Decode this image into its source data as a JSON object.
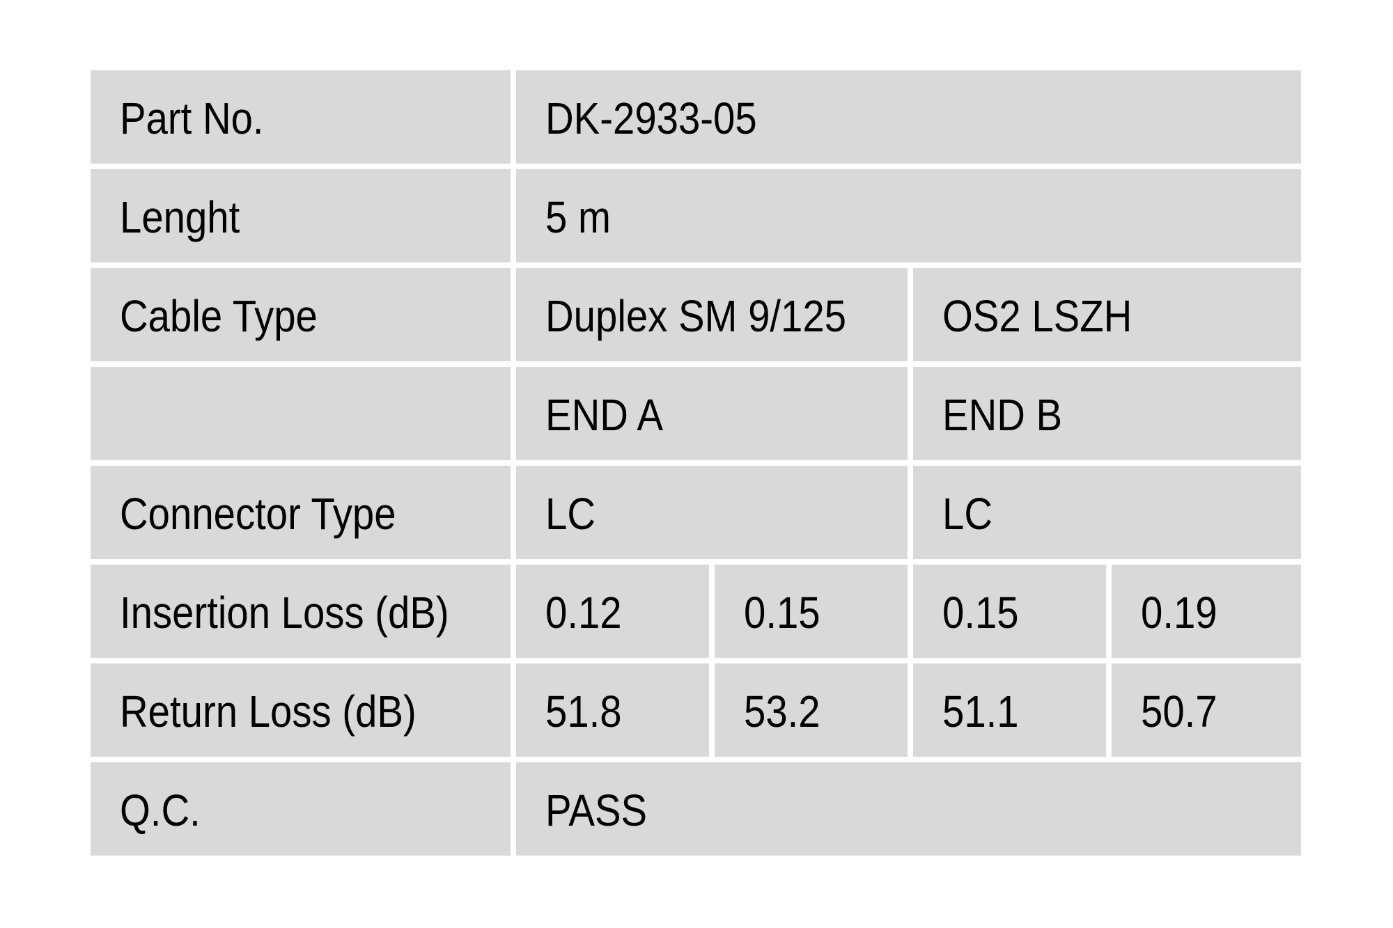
{
  "page": {
    "background": "#ffffff"
  },
  "table": {
    "cell_background": "#d9d9d9",
    "grid_line_color": "#ffffff",
    "text_color": "#000000",
    "rows": [
      {
        "label": "Part No.",
        "values": [
          "DK-2933-05"
        ]
      },
      {
        "label": "Lenght",
        "values": [
          "5 m"
        ]
      },
      {
        "label": "Cable Type",
        "values": [
          "Duplex SM 9/125",
          "OS2 LSZH"
        ]
      },
      {
        "label": "",
        "values": [
          "END A",
          "END B"
        ]
      },
      {
        "label": "Connector Type",
        "values": [
          "LC",
          "LC"
        ]
      },
      {
        "label": "Insertion Loss (dB)",
        "values": [
          "0.12",
          "0.15",
          "0.15",
          "0.19"
        ]
      },
      {
        "label": "Return Loss (dB)",
        "values": [
          "51.8",
          "53.2",
          "51.1",
          "50.7"
        ]
      },
      {
        "label": "Q.C.",
        "values": [
          "PASS"
        ]
      }
    ]
  }
}
